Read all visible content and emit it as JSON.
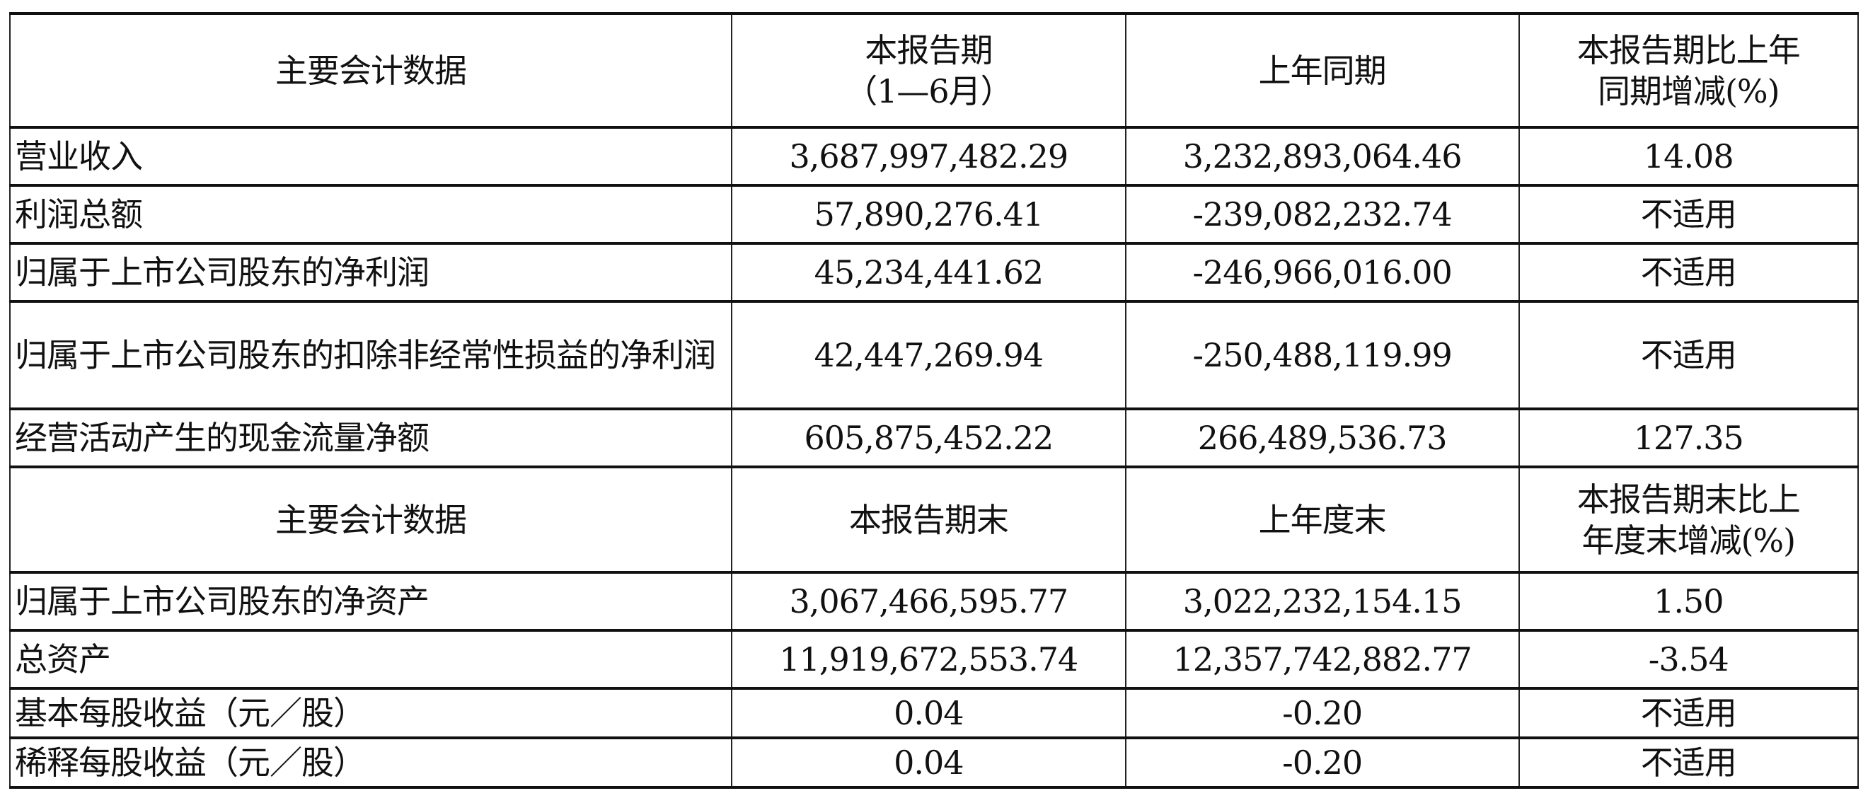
{
  "header1": [
    "主要会计数据",
    "本报告期\n（1—6月）",
    "上年同期",
    "本报告期比上年\n同期增减(%)"
  ],
  "rows1": [
    [
      "营业收入",
      "3,687,997,482.29",
      "3,232,893,064.46",
      "14.08"
    ],
    [
      "利润总额",
      "57,890,276.41",
      "-239,082,232.74",
      "不适用"
    ],
    [
      "归属于上市公司股东的净利润",
      "45,234,441.62",
      "-246,966,016.00",
      "不适用"
    ],
    [
      "归属于上市公司股东的扣除非经常性损益的净利润",
      "42,447,269.94",
      "-250,488,119.99",
      "不适用"
    ],
    [
      "经营活动产生的现金流量净额",
      "605,875,452.22",
      "266,489,536.73",
      "127.35"
    ]
  ],
  "header2": [
    "主要会计数据",
    "本报告期末",
    "上年度末",
    "本报告期末比上\n年度末增减(%)"
  ],
  "rows2": [
    [
      "归属于上市公司股东的净资产",
      "3,067,466,595.77",
      "3,022,232,154.15",
      "1.50"
    ],
    [
      "总资产",
      "11,919,672,553.74",
      "12,357,742,882.77",
      "-3.54"
    ],
    [
      "基本每股收益（元／股）",
      "0.04",
      "-0.20",
      "不适用"
    ],
    [
      "稀释每股收益（元／股）",
      "0.04",
      "-0.20",
      "不适用"
    ]
  ]
}
